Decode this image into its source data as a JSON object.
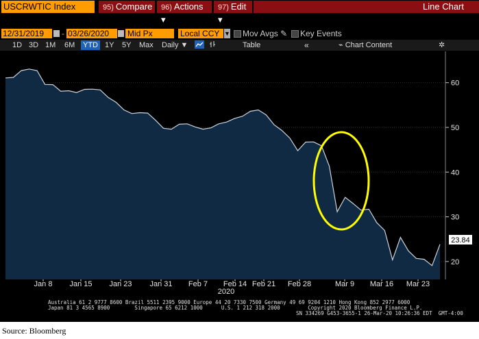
{
  "toolbar": {
    "ticker": "USCRWTIC Index",
    "compare_num": "95)",
    "compare_label": "Compare",
    "actions_num": "96)",
    "actions_label": "Actions ▾",
    "edit_num": "97)",
    "edit_label": "Edit ▾",
    "view_title": "Line Chart"
  },
  "controls": {
    "start_date": "12/31/2019",
    "end_date": "03/26/2020",
    "dash": "-",
    "field": "Mid Px",
    "currency": "Local CCY",
    "mov_avgs": "Mov Avgs",
    "key_events": "Key Events"
  },
  "periods": [
    "1D",
    "3D",
    "1M",
    "6M",
    "YTD",
    "1Y",
    "5Y",
    "Max"
  ],
  "frequency": "Daily ▼",
  "table_label": "Table",
  "chart_content_label": "Chart Content",
  "colors": {
    "accent_orange": "#ff9c00",
    "toolbar_red": "#8a0f12",
    "area_fill": "#112a44",
    "highlight_circle": "#ffff00"
  },
  "icons": {
    "line-chart": "line-chart-icon",
    "bar": "bar-type-icon",
    "collapse": "double-chevron-left-icon",
    "chart-content": "chart-content-icon",
    "gear": "gear-icon"
  },
  "chart_data": {
    "type": "area",
    "x_labels": [
      "Jan 8",
      "Jan 15",
      "Jan 23",
      "Jan 31",
      "Feb 7",
      "Feb 14",
      "Feb 21",
      "Feb 28",
      "Mar 9",
      "Mar 16",
      "Mar 23"
    ],
    "year_label": "2020",
    "y_ticks": [
      20,
      30,
      40,
      50,
      60
    ],
    "ylim": [
      16,
      67
    ],
    "last_value": "23.84",
    "series": [
      {
        "values": [
          61.06,
          61.18,
          62.7,
          63.05,
          62.7,
          59.6,
          59.56,
          58.08,
          58.2,
          57.8,
          58.5,
          58.54,
          58.38,
          56.7,
          55.6,
          53.9,
          53.1,
          53.3,
          53.2,
          51.6,
          49.8,
          49.6,
          50.7,
          50.8,
          50.1,
          49.6,
          49.9,
          50.8,
          51.2,
          52.0,
          52.5,
          53.6,
          53.9,
          52.8,
          50.6,
          49.3,
          47.6,
          44.8,
          46.7,
          46.75,
          45.9,
          41.3,
          31.13,
          34.36,
          32.98,
          31.5,
          31.7,
          28.7,
          26.95,
          20.37,
          25.4,
          22.4,
          20.7,
          20.5,
          19.1,
          23.84
        ]
      }
    ]
  },
  "footer": {
    "line1": "Australia 61 2 9777 8600 Brazil 5511 2395 9000 Europe 44 20 7330 7500 Germany 49 69 9204 1210 Hong Kong 852 2977 6000",
    "line2": "Japan 81 3 4565 8900        Singapore 65 6212 1000      U.S. 1 212 318 2000         Copyright 2020 Bloomberg Finance L.P.",
    "line3": "SN 334269 G453-3655-1 26-Mar-20 10:26:36 EDT  GMT-4:00"
  },
  "source": "Source: Bloomberg"
}
